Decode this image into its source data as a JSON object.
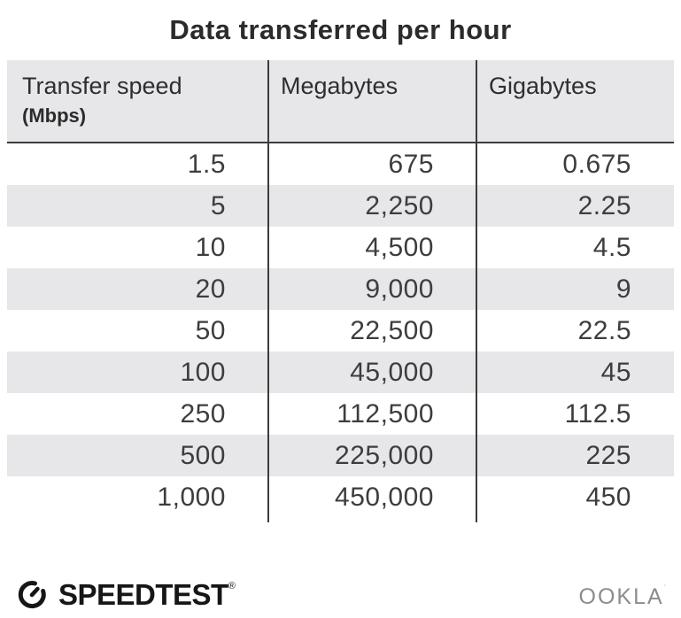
{
  "title": "Data transferred per hour",
  "table": {
    "columns": [
      {
        "label": "Transfer speed",
        "sublabel": "(Mbps)"
      },
      {
        "label": "Megabytes"
      },
      {
        "label": "Gigabytes"
      }
    ],
    "rows": [
      [
        "1.5",
        "675",
        "0.675"
      ],
      [
        "5",
        "2,250",
        "2.25"
      ],
      [
        "10",
        "4,500",
        "4.5"
      ],
      [
        "20",
        "9,000",
        "9"
      ],
      [
        "50",
        "22,500",
        "22.5"
      ],
      [
        "100",
        "45,000",
        "45"
      ],
      [
        "250",
        "112,500",
        "112.5"
      ],
      [
        "500",
        "225,000",
        "225"
      ],
      [
        "1,000",
        "450,000",
        "450"
      ]
    ]
  },
  "footer": {
    "speedtest_label": "SPEEDTEST",
    "speedtest_trademark": "®",
    "ookla_label": "OOKLA",
    "ookla_trademark": "˙"
  },
  "colors": {
    "stripe_bg": "#e7e7ea",
    "header_bg": "#e7e7ea",
    "rule_line": "#3c3c3c",
    "title_text": "#2b2b2b",
    "number_text": "#3d3d3d",
    "speedtest_black": "#161616",
    "ookla_gray": "#8c8c8c"
  },
  "chart_data": {
    "type": "table",
    "title": "Data transferred per hour",
    "columns": [
      "Transfer speed (Mbps)",
      "Megabytes",
      "Gigabytes"
    ],
    "rows": [
      [
        1.5,
        675,
        0.675
      ],
      [
        5,
        2250,
        2.25
      ],
      [
        10,
        4500,
        4.5
      ],
      [
        20,
        9000,
        9
      ],
      [
        50,
        22500,
        22.5
      ],
      [
        100,
        45000,
        45
      ],
      [
        250,
        112500,
        112.5
      ],
      [
        500,
        225000,
        225
      ],
      [
        1000,
        450000,
        450
      ]
    ],
    "layout": {
      "striped_rows": true,
      "column_dividers": true,
      "header_underline": true
    }
  }
}
